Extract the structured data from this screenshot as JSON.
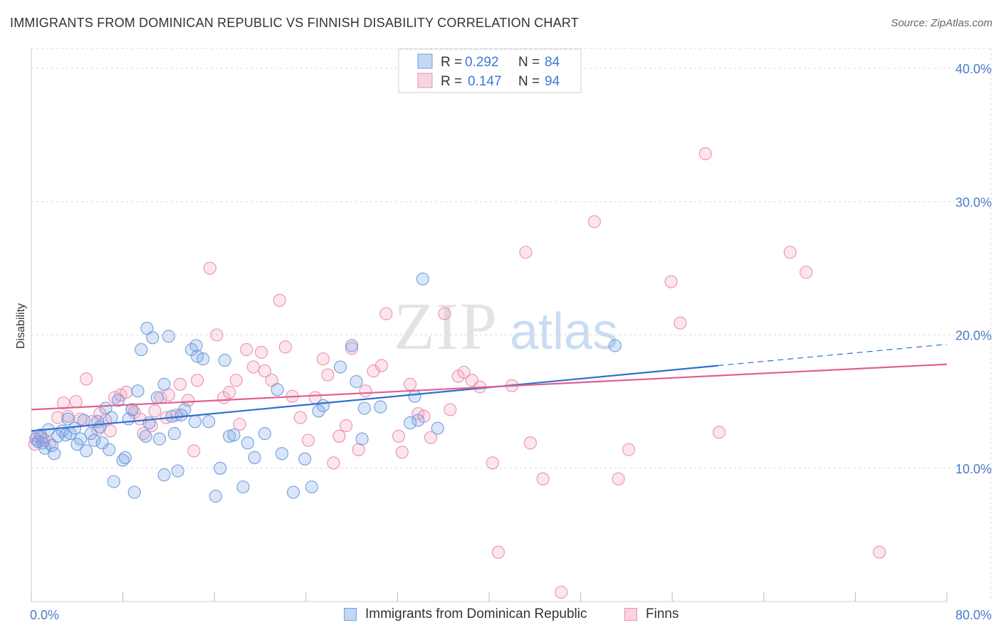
{
  "title": "IMMIGRANTS FROM DOMINICAN REPUBLIC VS FINNISH DISABILITY CORRELATION CHART",
  "source": "Source: ZipAtlas.com",
  "watermark": {
    "zip": "ZIP",
    "atlas": "atlas"
  },
  "legend_top": [
    {
      "r_label": "R = ",
      "r_value": "0.292",
      "n_label": "N = ",
      "n_value": "84"
    },
    {
      "r_label": "R = ",
      "r_value": "0.147",
      "n_label": "N = ",
      "n_value": "94"
    }
  ],
  "legend_bottom": [
    {
      "label": "Immigrants from Dominican Republic"
    },
    {
      "label": "Finns"
    }
  ],
  "colors": {
    "blue_fill": "rgba(122,167,230,0.28)",
    "blue_stroke": "#6f9ee0",
    "blue_line": "#2f6fd0",
    "pink_fill": "rgba(244,160,190,0.28)",
    "pink_stroke": "#eb8fb0",
    "pink_line": "#e0608e",
    "tick_text": "#4a7cc7",
    "grid": "#d9d9d9"
  },
  "chart_data": {
    "type": "scatter",
    "title": "IMMIGRANTS FROM DOMINICAN REPUBLIC VS FINNISH DISABILITY CORRELATION CHART",
    "xlabel": "",
    "ylabel": "Disability",
    "xlim": [
      0,
      80
    ],
    "ylim": [
      0,
      41.5
    ],
    "x_tick_labels": [
      {
        "value": 0,
        "label": "0.0%"
      },
      {
        "value": 80,
        "label": "80.0%"
      }
    ],
    "y_tick_labels": [
      {
        "value": 10,
        "label": "10.0%"
      },
      {
        "value": 20,
        "label": "20.0%"
      },
      {
        "value": 30,
        "label": "30.0%"
      },
      {
        "value": 40,
        "label": "40.0%"
      }
    ],
    "grid": true,
    "legend_position": "top-center",
    "series": [
      {
        "name": "Immigrants from Dominican Republic",
        "color": "#6f9ee0",
        "trend": {
          "x": [
            0,
            60
          ],
          "y": [
            12.8,
            17.7
          ],
          "dashed_to": [
            80,
            19.3
          ]
        },
        "points": [
          [
            0.4,
            12.2
          ],
          [
            0.6,
            12.0
          ],
          [
            0.8,
            12.5
          ],
          [
            1.0,
            11.9
          ],
          [
            1.2,
            11.5
          ],
          [
            1.5,
            12.9
          ],
          [
            1.8,
            11.7
          ],
          [
            2.0,
            11.1
          ],
          [
            2.3,
            12.4
          ],
          [
            2.7,
            12.8
          ],
          [
            3.0,
            12.5
          ],
          [
            3.2,
            13.7
          ],
          [
            3.4,
            12.6
          ],
          [
            3.8,
            13.0
          ],
          [
            4.0,
            11.8
          ],
          [
            4.3,
            12.2
          ],
          [
            4.6,
            13.6
          ],
          [
            4.8,
            11.3
          ],
          [
            5.2,
            12.6
          ],
          [
            5.5,
            12.1
          ],
          [
            5.8,
            13.5
          ],
          [
            6.0,
            13.1
          ],
          [
            6.2,
            11.9
          ],
          [
            6.5,
            14.5
          ],
          [
            6.8,
            11.4
          ],
          [
            7.0,
            13.8
          ],
          [
            7.2,
            9.0
          ],
          [
            7.6,
            15.1
          ],
          [
            8.0,
            10.6
          ],
          [
            8.2,
            10.8
          ],
          [
            8.5,
            13.7
          ],
          [
            8.8,
            14.4
          ],
          [
            9.0,
            8.2
          ],
          [
            9.3,
            15.8
          ],
          [
            9.6,
            18.9
          ],
          [
            10.0,
            12.4
          ],
          [
            10.1,
            20.5
          ],
          [
            10.3,
            13.4
          ],
          [
            10.6,
            19.8
          ],
          [
            11.0,
            15.3
          ],
          [
            11.2,
            12.2
          ],
          [
            11.6,
            16.3
          ],
          [
            11.6,
            9.5
          ],
          [
            12.0,
            19.9
          ],
          [
            12.3,
            13.9
          ],
          [
            12.5,
            12.6
          ],
          [
            12.8,
            9.8
          ],
          [
            13.1,
            14.0
          ],
          [
            13.4,
            14.4
          ],
          [
            14.0,
            18.9
          ],
          [
            14.3,
            13.5
          ],
          [
            14.4,
            19.2
          ],
          [
            14.5,
            18.4
          ],
          [
            15.0,
            18.2
          ],
          [
            15.5,
            13.5
          ],
          [
            16.1,
            7.9
          ],
          [
            16.5,
            10.0
          ],
          [
            16.9,
            18.1
          ],
          [
            17.3,
            12.4
          ],
          [
            17.7,
            12.5
          ],
          [
            18.5,
            8.6
          ],
          [
            18.9,
            11.9
          ],
          [
            19.5,
            10.8
          ],
          [
            20.4,
            12.6
          ],
          [
            21.5,
            15.9
          ],
          [
            21.9,
            11.1
          ],
          [
            22.9,
            8.2
          ],
          [
            23.9,
            10.7
          ],
          [
            24.5,
            8.6
          ],
          [
            25.1,
            14.3
          ],
          [
            25.5,
            14.7
          ],
          [
            27.0,
            17.6
          ],
          [
            28.0,
            19.2
          ],
          [
            28.4,
            16.5
          ],
          [
            28.9,
            12.2
          ],
          [
            29.1,
            14.5
          ],
          [
            30.5,
            14.6
          ],
          [
            33.1,
            13.4
          ],
          [
            33.5,
            15.4
          ],
          [
            33.8,
            13.6
          ],
          [
            34.2,
            24.2
          ],
          [
            35.5,
            13.0
          ],
          [
            51.0,
            19.2
          ]
        ]
      },
      {
        "name": "Finns",
        "color": "#eb8fb0",
        "trend": {
          "x": [
            0,
            80
          ],
          "y": [
            14.4,
            17.8
          ]
        },
        "points": [
          [
            0.3,
            11.8
          ],
          [
            0.5,
            12.4
          ],
          [
            0.9,
            12.3
          ],
          [
            1.1,
            12.1
          ],
          [
            1.6,
            11.9
          ],
          [
            2.3,
            13.8
          ],
          [
            2.8,
            14.9
          ],
          [
            3.2,
            13.9
          ],
          [
            3.9,
            15.0
          ],
          [
            4.3,
            13.7
          ],
          [
            4.8,
            16.7
          ],
          [
            5.3,
            13.5
          ],
          [
            5.8,
            12.9
          ],
          [
            6.0,
            14.1
          ],
          [
            6.5,
            13.6
          ],
          [
            6.9,
            12.8
          ],
          [
            7.3,
            15.3
          ],
          [
            7.8,
            15.5
          ],
          [
            8.3,
            15.7
          ],
          [
            8.8,
            14.4
          ],
          [
            9.0,
            14.2
          ],
          [
            9.5,
            13.7
          ],
          [
            9.8,
            12.6
          ],
          [
            10.5,
            13.2
          ],
          [
            10.8,
            14.3
          ],
          [
            11.3,
            15.3
          ],
          [
            11.8,
            13.8
          ],
          [
            12.0,
            15.5
          ],
          [
            12.7,
            14.0
          ],
          [
            13.0,
            16.3
          ],
          [
            13.7,
            15.1
          ],
          [
            14.2,
            11.3
          ],
          [
            14.5,
            16.6
          ],
          [
            15.6,
            25.0
          ],
          [
            16.2,
            20.0
          ],
          [
            16.8,
            15.3
          ],
          [
            17.3,
            15.7
          ],
          [
            17.9,
            16.6
          ],
          [
            18.2,
            13.3
          ],
          [
            18.8,
            18.9
          ],
          [
            19.4,
            17.6
          ],
          [
            20.1,
            18.7
          ],
          [
            20.4,
            17.3
          ],
          [
            21.0,
            16.6
          ],
          [
            21.7,
            22.6
          ],
          [
            22.2,
            19.1
          ],
          [
            22.8,
            15.4
          ],
          [
            23.5,
            13.8
          ],
          [
            24.2,
            12.1
          ],
          [
            24.8,
            15.3
          ],
          [
            25.5,
            18.2
          ],
          [
            25.9,
            17.0
          ],
          [
            26.4,
            10.4
          ],
          [
            26.9,
            12.4
          ],
          [
            27.5,
            13.2
          ],
          [
            28.0,
            19.0
          ],
          [
            28.6,
            11.4
          ],
          [
            29.2,
            15.8
          ],
          [
            29.9,
            17.3
          ],
          [
            30.6,
            17.7
          ],
          [
            31.0,
            21.6
          ],
          [
            32.1,
            12.4
          ],
          [
            32.4,
            11.2
          ],
          [
            33.1,
            16.3
          ],
          [
            33.8,
            14.1
          ],
          [
            34.3,
            13.9
          ],
          [
            34.9,
            12.3
          ],
          [
            36.1,
            21.6
          ],
          [
            36.6,
            14.4
          ],
          [
            37.3,
            16.9
          ],
          [
            37.8,
            17.2
          ],
          [
            38.5,
            16.6
          ],
          [
            39.2,
            16.1
          ],
          [
            40.3,
            10.4
          ],
          [
            40.8,
            3.7
          ],
          [
            42.0,
            16.2
          ],
          [
            43.2,
            26.2
          ],
          [
            43.6,
            11.9
          ],
          [
            44.7,
            9.2
          ],
          [
            46.3,
            0.7
          ],
          [
            49.2,
            28.5
          ],
          [
            51.3,
            9.2
          ],
          [
            52.2,
            11.4
          ],
          [
            55.9,
            24.0
          ],
          [
            56.7,
            20.9
          ],
          [
            58.9,
            33.6
          ],
          [
            60.1,
            12.7
          ],
          [
            66.3,
            26.2
          ],
          [
            67.7,
            24.7
          ],
          [
            74.1,
            3.7
          ]
        ]
      }
    ]
  }
}
